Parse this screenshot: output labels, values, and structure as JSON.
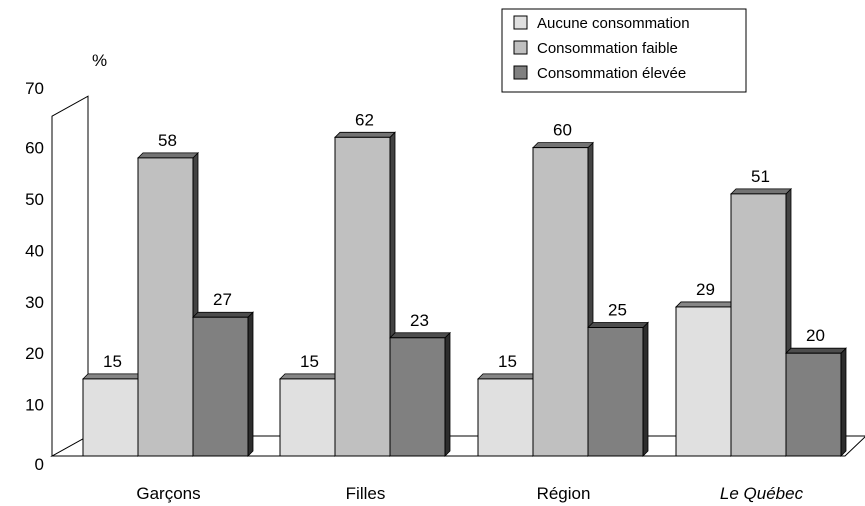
{
  "chart_data": {
    "type": "bar",
    "ylabel": "%",
    "ylim": [
      0,
      70
    ],
    "yticks": [
      0,
      10,
      20,
      30,
      40,
      50,
      60,
      70
    ],
    "categories": [
      "Garçons",
      "Filles",
      "Région",
      "Le Québec"
    ],
    "category_styles": [
      "normal",
      "normal",
      "normal",
      "italic"
    ],
    "series": [
      {
        "name": "Aucune consommation",
        "color": "#e0e0e0",
        "values": [
          15,
          15,
          15,
          29
        ]
      },
      {
        "name": "Consommation faible",
        "color": "#c0c0c0",
        "values": [
          58,
          62,
          60,
          51
        ]
      },
      {
        "name": "Consommation élevée",
        "color": "#808080",
        "values": [
          27,
          23,
          25,
          20
        ]
      }
    ],
    "legend_position": "top-right",
    "grid": false,
    "three_d": true
  }
}
